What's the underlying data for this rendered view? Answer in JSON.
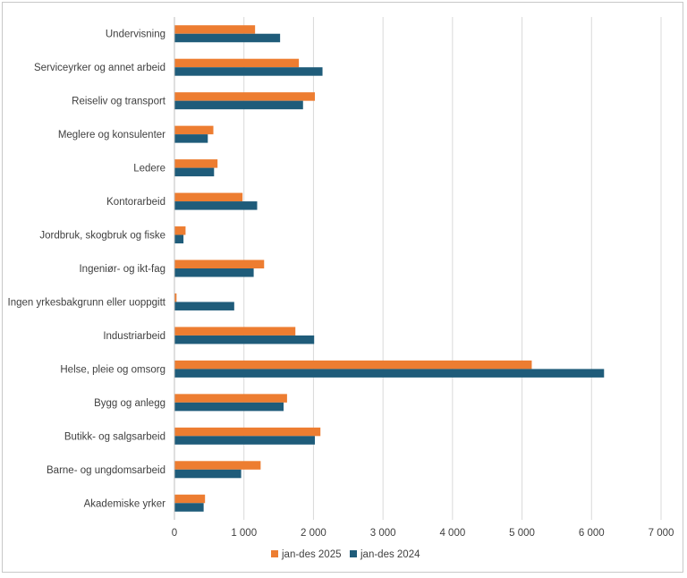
{
  "chart_data": {
    "type": "bar",
    "orientation": "horizontal",
    "title": "",
    "xlabel": "",
    "ylabel": "",
    "xlim": [
      0,
      7000
    ],
    "x_ticks": [
      0,
      1000,
      2000,
      3000,
      4000,
      5000,
      6000,
      7000
    ],
    "x_tick_labels": [
      "0",
      "1 000",
      "2 000",
      "3 000",
      "4 000",
      "5 000",
      "6 000",
      "7 000"
    ],
    "grid": true,
    "legend_position": "bottom",
    "categories": [
      "Undervisning",
      "Serviceyrker og annet arbeid",
      "Reiseliv og transport",
      "Meglere og konsulenter",
      "Ledere",
      "Kontorarbeid",
      "Jordbruk, skogbruk og fiske",
      "Ingeniør- og ikt-fag",
      "Ingen yrkesbakgrunn eller uoppgitt",
      "Industriarbeid",
      "Helse, pleie og omsorg",
      "Bygg og anlegg",
      "Butikk- og salgsarbeid",
      "Barne- og ungdomsarbeid",
      "Akademiske yrker"
    ],
    "series": [
      {
        "name": "jan-des 2025",
        "color": "#ed7d31",
        "values": [
          1160,
          1790,
          2020,
          560,
          620,
          980,
          160,
          1290,
          30,
          1740,
          5140,
          1620,
          2100,
          1240,
          440
        ]
      },
      {
        "name": "jan-des 2024",
        "color": "#1f5c7a",
        "values": [
          1520,
          2130,
          1850,
          480,
          570,
          1190,
          130,
          1140,
          860,
          2010,
          6180,
          1570,
          2020,
          960,
          420
        ]
      }
    ]
  }
}
